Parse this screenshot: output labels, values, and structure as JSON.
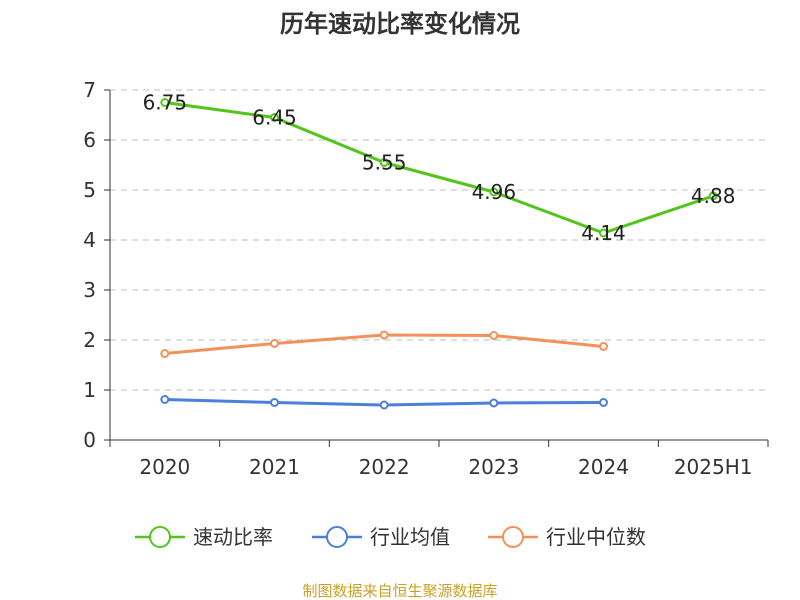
{
  "chart_data": {
    "type": "line",
    "title": "历年速动比率变化情况",
    "categories": [
      "2020",
      "2021",
      "2022",
      "2023",
      "2024",
      "2025H1"
    ],
    "ylim": [
      0,
      7
    ],
    "yticks": [
      0,
      1,
      2,
      3,
      4,
      5,
      6,
      7
    ],
    "grid": true,
    "legend_position": "bottom",
    "series": [
      {
        "name": "速动比率",
        "color": "#52c41a",
        "values": [
          6.75,
          6.45,
          5.55,
          4.96,
          4.14,
          4.88
        ],
        "labels": [
          "6.75",
          "6.45",
          "5.55",
          "4.96",
          "4.14",
          "4.88"
        ]
      },
      {
        "name": "行业均值",
        "color": "#4a7fdc",
        "values": [
          0.81,
          0.75,
          0.7,
          0.74,
          0.75,
          null
        ]
      },
      {
        "name": "行业中位数",
        "color": "#f5905a",
        "values": [
          1.73,
          1.93,
          2.1,
          2.09,
          1.87,
          null
        ]
      }
    ]
  },
  "footer": {
    "source": "制图数据来自恒生聚源数据库"
  }
}
